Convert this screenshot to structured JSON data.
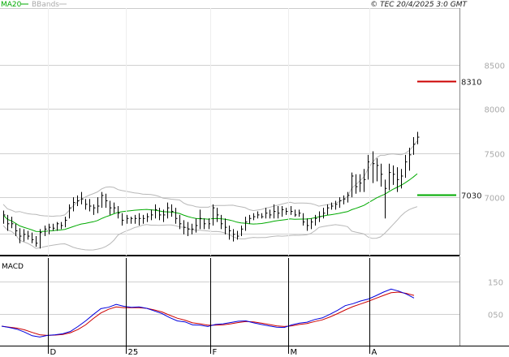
{
  "header": {
    "legend_ma": "MA20",
    "legend_bb": "BBands",
    "copyright": "© TEC 20/4/2025 3:0 GMT"
  },
  "colors": {
    "price": "#000000",
    "ma": "#00aa00",
    "bbands": "#b8b8b8",
    "macd": "#0000dd",
    "signal": "#cc0000",
    "grid": "#d0d0d0",
    "resistance": "#cc0000",
    "support": "#00aa00"
  },
  "chart_data": [
    {
      "type": "ohlc-bar",
      "panel": "price",
      "yticks": [
        7000,
        7500,
        8000,
        8500
      ],
      "ytick_labels": [
        "7000",
        "7500",
        "8000",
        "8500"
      ],
      "ylim": [
        6340,
        9140
      ],
      "xticks": [
        "D",
        "25",
        "F",
        "M",
        "A"
      ],
      "levels": [
        {
          "label": "8310",
          "value": 8310,
          "color": "#cc0000"
        },
        {
          "label": "7030",
          "value": 7030,
          "color": "#00aa00"
        }
      ],
      "series": [
        {
          "name": "MA20",
          "kind": "moving-average"
        },
        {
          "name": "BBands",
          "kind": "bollinger-bands"
        }
      ],
      "bars": [
        [
          6850,
          6700,
          6800
        ],
        [
          6800,
          6620,
          6700
        ],
        [
          6780,
          6650,
          6700
        ],
        [
          6700,
          6560,
          6620
        ],
        [
          6650,
          6480,
          6560
        ],
        [
          6640,
          6500,
          6580
        ],
        [
          6620,
          6520,
          6560
        ],
        [
          6600,
          6480,
          6520
        ],
        [
          6560,
          6440,
          6480
        ],
        [
          6640,
          6420,
          6600
        ],
        [
          6680,
          6560,
          6640
        ],
        [
          6700,
          6580,
          6660
        ],
        [
          6700,
          6620,
          6650
        ],
        [
          6720,
          6620,
          6700
        ],
        [
          6720,
          6640,
          6680
        ],
        [
          6780,
          6660,
          6740
        ],
        [
          6920,
          6760,
          6880
        ],
        [
          7000,
          6840,
          6940
        ],
        [
          7020,
          6900,
          6960
        ],
        [
          7060,
          6920,
          6980
        ],
        [
          6980,
          6860,
          6920
        ],
        [
          6980,
          6840,
          6900
        ],
        [
          6920,
          6800,
          6880
        ],
        [
          7000,
          6820,
          6900
        ],
        [
          7060,
          6880,
          7020
        ],
        [
          7040,
          6880,
          6960
        ],
        [
          6960,
          6800,
          6880
        ],
        [
          6940,
          6820,
          6880
        ],
        [
          6900,
          6760,
          6820
        ],
        [
          6820,
          6680,
          6740
        ],
        [
          6800,
          6700,
          6760
        ],
        [
          6780,
          6700,
          6760
        ],
        [
          6800,
          6700,
          6760
        ],
        [
          6820,
          6680,
          6760
        ],
        [
          6800,
          6700,
          6760
        ],
        [
          6820,
          6720,
          6780
        ],
        [
          6860,
          6740,
          6800
        ],
        [
          6920,
          6760,
          6860
        ],
        [
          6880,
          6740,
          6800
        ],
        [
          6860,
          6720,
          6800
        ],
        [
          6940,
          6760,
          6880
        ],
        [
          6920,
          6780,
          6840
        ],
        [
          6880,
          6700,
          6760
        ],
        [
          6800,
          6640,
          6700
        ],
        [
          6740,
          6580,
          6660
        ],
        [
          6720,
          6560,
          6640
        ],
        [
          6700,
          6580,
          6640
        ],
        [
          6760,
          6600,
          6680
        ],
        [
          6860,
          6640,
          6760
        ],
        [
          6760,
          6640,
          6700
        ],
        [
          6760,
          6640,
          6700
        ],
        [
          6920,
          6680,
          6880
        ],
        [
          6880,
          6720,
          6800
        ],
        [
          6800,
          6640,
          6700
        ],
        [
          6760,
          6580,
          6660
        ],
        [
          6680,
          6520,
          6620
        ],
        [
          6640,
          6500,
          6580
        ],
        [
          6620,
          6520,
          6560
        ],
        [
          6680,
          6560,
          6640
        ],
        [
          6780,
          6620,
          6720
        ],
        [
          6800,
          6700,
          6760
        ],
        [
          6820,
          6740,
          6780
        ],
        [
          6840,
          6760,
          6800
        ],
        [
          6820,
          6760,
          6780
        ],
        [
          6880,
          6760,
          6820
        ],
        [
          6860,
          6760,
          6800
        ],
        [
          6920,
          6760,
          6840
        ],
        [
          6900,
          6760,
          6820
        ],
        [
          6900,
          6780,
          6860
        ],
        [
          6880,
          6800,
          6840
        ],
        [
          6900,
          6800,
          6840
        ],
        [
          6860,
          6780,
          6800
        ],
        [
          6860,
          6780,
          6820
        ],
        [
          6820,
          6680,
          6720
        ],
        [
          6760,
          6620,
          6680
        ],
        [
          6760,
          6640,
          6720
        ],
        [
          6800,
          6680,
          6760
        ],
        [
          6840,
          6720,
          6780
        ],
        [
          6880,
          6760,
          6820
        ],
        [
          6920,
          6800,
          6880
        ],
        [
          6940,
          6860,
          6900
        ],
        [
          6960,
          6860,
          6920
        ],
        [
          7000,
          6880,
          6960
        ],
        [
          7020,
          6920,
          6980
        ],
        [
          7060,
          6940,
          7020
        ],
        [
          7280,
          7000,
          7240
        ],
        [
          7260,
          7040,
          7120
        ],
        [
          7260,
          7060,
          7160
        ],
        [
          7320,
          7060,
          7200
        ],
        [
          7480,
          7200,
          7400
        ],
        [
          7520,
          7160,
          7380
        ],
        [
          7440,
          7180,
          7360
        ],
        [
          7380,
          7120,
          7260
        ],
        [
          7200,
          6760,
          7100
        ],
        [
          7380,
          7080,
          7280
        ],
        [
          7360,
          7140,
          7260
        ],
        [
          7340,
          7060,
          7200
        ],
        [
          7320,
          7100,
          7240
        ],
        [
          7480,
          7220,
          7400
        ],
        [
          7560,
          7300,
          7480
        ],
        [
          7680,
          7480,
          7600
        ],
        [
          7740,
          7600,
          7680
        ]
      ]
    },
    {
      "type": "line",
      "panel": "macd",
      "title": "MACD",
      "yticks": [
        50,
        150
      ],
      "ytick_labels": [
        "050",
        "150"
      ],
      "ylim": [
        -40,
        220
      ],
      "series": [
        {
          "name": "MACD",
          "color": "#0000dd",
          "values": [
            14,
            10,
            5,
            -4,
            -15,
            -19,
            -14,
            -12,
            -9,
            -2,
            13,
            30,
            49,
            67,
            71,
            80,
            74,
            71,
            72,
            68,
            60,
            52,
            40,
            30,
            27,
            18,
            17,
            13,
            19,
            21,
            25,
            29,
            30,
            24,
            19,
            15,
            11,
            10,
            18,
            23,
            26,
            34,
            39,
            50,
            62,
            76,
            82,
            90,
            96,
            106,
            117,
            126,
            120,
            111,
            99
          ]
        },
        {
          "name": "Signal",
          "color": "#cc0000",
          "values": [
            14,
            11,
            8,
            3,
            -5,
            -12,
            -14,
            -13,
            -11,
            -6,
            4,
            18,
            37,
            54,
            65,
            72,
            70,
            70,
            70,
            68,
            63,
            57,
            47,
            38,
            32,
            24,
            21,
            17,
            17,
            18,
            21,
            25,
            28,
            27,
            23,
            19,
            15,
            13,
            15,
            19,
            22,
            28,
            33,
            42,
            52,
            63,
            73,
            81,
            89,
            98,
            107,
            115,
            117,
            113,
            107
          ]
        }
      ]
    }
  ]
}
